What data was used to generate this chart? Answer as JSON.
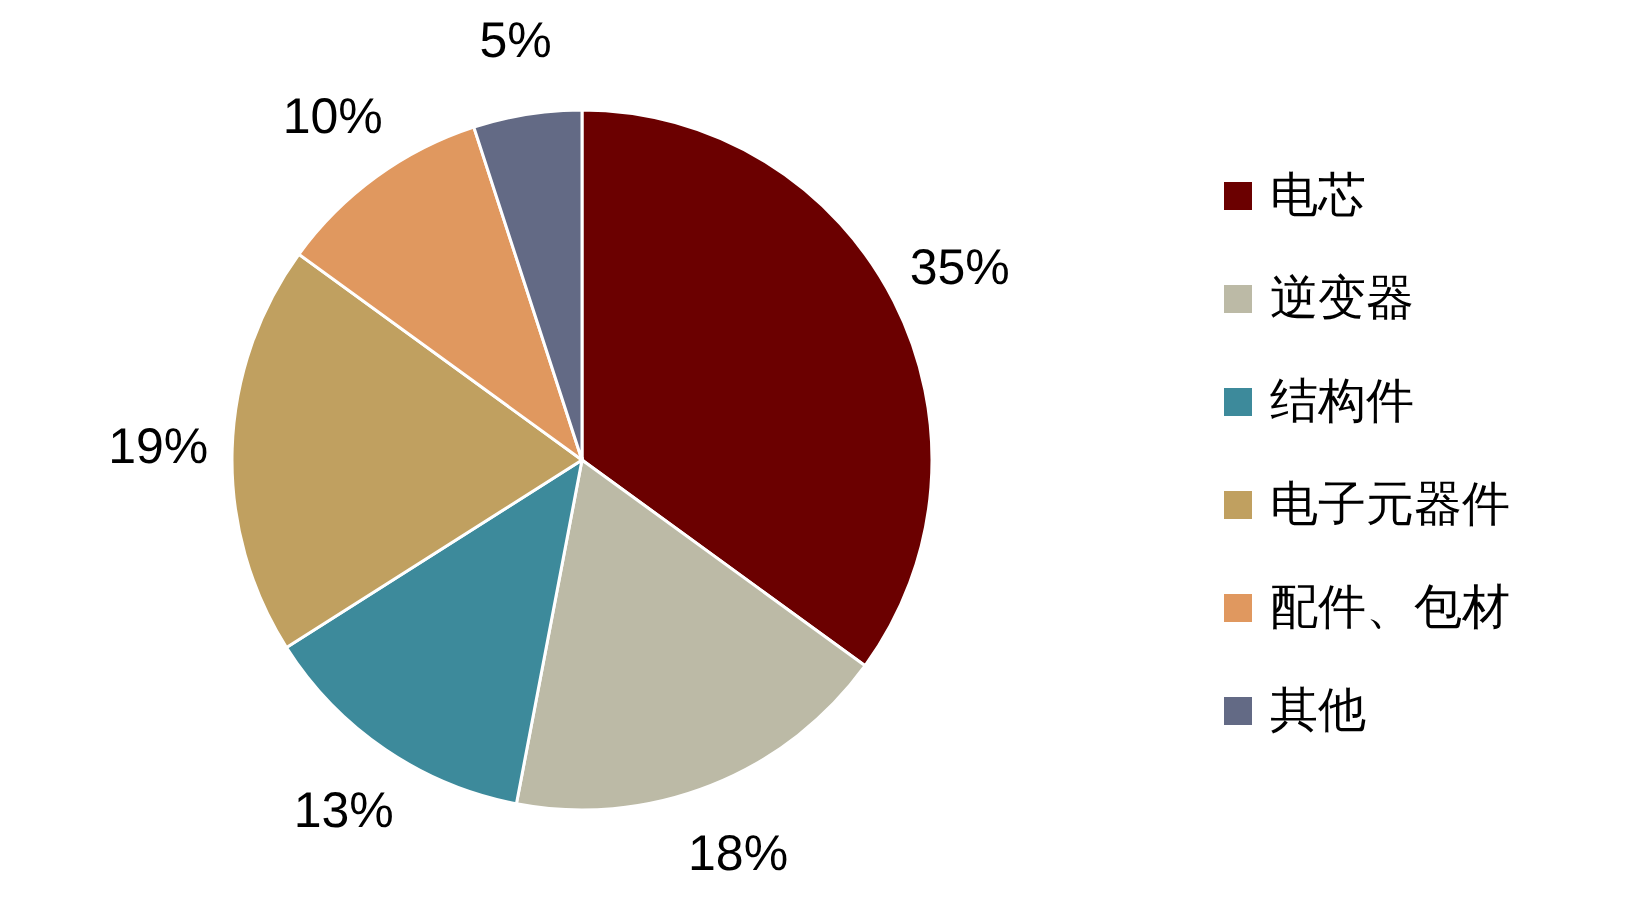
{
  "chart_data": {
    "type": "pie",
    "categories": [
      "电芯",
      "逆变器",
      "结构件",
      "电子元器件",
      "配件、包材",
      "其他"
    ],
    "values": [
      35,
      18,
      13,
      19,
      10,
      5
    ],
    "colors": [
      "#6b0000",
      "#bcbaa6",
      "#3d8a9b",
      "#c0a060",
      "#e0985f",
      "#636a85"
    ],
    "value_labels": [
      "35%",
      "18%",
      "13%",
      "19%",
      "10%",
      "5%"
    ],
    "legend": "right"
  }
}
